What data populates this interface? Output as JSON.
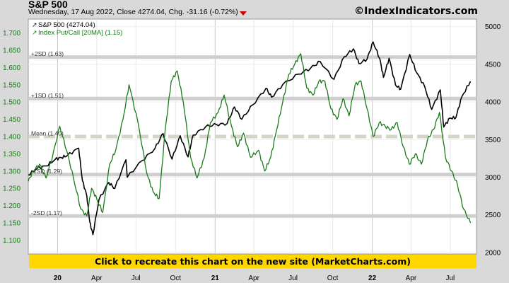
{
  "header": {
    "title": "S&P 500",
    "subtitle": "Wednesday, 17 Aug 2022, Close 4274.04, Chg. -31.16 (-0.72%)",
    "brand": "©IndexIndicators.com",
    "change_direction": "down"
  },
  "banner": {
    "label": "Click to recreate this chart on the new site (MarketCharts.com)"
  },
  "colors": {
    "background": "#d9d9d9",
    "plot_background": "#ffffff",
    "spx_line": "#000000",
    "putcall_line": "#1a7a1a",
    "banner": "#ffd700",
    "down_arrow": "#cc0000",
    "band": "#cfcfcf",
    "mean_band": "#d6d6c8"
  },
  "chart_data": {
    "type": "line",
    "x_axis": {
      "labels": [
        "20",
        "Apr",
        "Jul",
        "Oct",
        "21",
        "Apr",
        "Jul",
        "Oct",
        "22",
        "Apr",
        "Jul"
      ],
      "bold_labels": [
        "20",
        "21",
        "22"
      ],
      "range": [
        "2019-10-25",
        "2022-08-31"
      ]
    },
    "y_left": {
      "ticks": [
        1.1,
        1.15,
        1.2,
        1.25,
        1.3,
        1.35,
        1.4,
        1.45,
        1.5,
        1.55,
        1.6,
        1.65,
        1.7
      ],
      "range": [
        1.06,
        1.74
      ]
    },
    "y_right": {
      "ticks": [
        2000,
        2500,
        3000,
        3500,
        4000,
        4500,
        5000
      ],
      "range": [
        1980,
        5100
      ]
    },
    "legend": {
      "position": "top-left",
      "entries": [
        "S&P 500 (4274.04)",
        "Index Put/Call [20MA] (1.15)"
      ]
    },
    "bands": [
      {
        "label": "+2SD (1.63)",
        "value": 1.63
      },
      {
        "label": "+1SD (1.51)",
        "value": 1.51
      },
      {
        "label": "Mean (1.40)",
        "value": 1.4,
        "dashed": true
      },
      {
        "label": "-1SD (1.29)",
        "value": 1.29
      },
      {
        "label": "-2SD (1.17)",
        "value": 1.17
      }
    ],
    "series": [
      {
        "name": "S&P 500",
        "axis": "right",
        "x": [
          "2019-10-25",
          "2019-11-15",
          "2019-12-06",
          "2019-12-27",
          "2020-01-10",
          "2020-01-24",
          "2020-02-19",
          "2020-02-28",
          "2020-03-09",
          "2020-03-16",
          "2020-03-23",
          "2020-04-06",
          "2020-04-29",
          "2020-05-13",
          "2020-06-08",
          "2020-06-11",
          "2020-07-15",
          "2020-08-14",
          "2020-09-02",
          "2020-09-23",
          "2020-10-12",
          "2020-10-30",
          "2020-11-11",
          "2020-12-10",
          "2021-01-04",
          "2021-01-29",
          "2021-02-15",
          "2021-03-04",
          "2021-03-29",
          "2021-04-29",
          "2021-05-12",
          "2021-06-07",
          "2021-07-14",
          "2021-08-11",
          "2021-09-02",
          "2021-10-04",
          "2021-10-28",
          "2021-11-18",
          "2021-12-01",
          "2021-12-20",
          "2022-01-03",
          "2022-01-18",
          "2022-01-27",
          "2022-02-09",
          "2022-02-24",
          "2022-03-08",
          "2022-03-29",
          "2022-04-14",
          "2022-05-03",
          "2022-05-19",
          "2022-06-08",
          "2022-06-16",
          "2022-06-30",
          "2022-07-14",
          "2022-07-28",
          "2022-08-17"
        ],
        "values": [
          3030,
          3120,
          3150,
          3240,
          3260,
          3290,
          3386,
          2950,
          2750,
          2400,
          2237,
          2700,
          2930,
          2850,
          3232,
          3000,
          3220,
          3380,
          3580,
          3240,
          3550,
          3270,
          3560,
          3670,
          3700,
          3714,
          3934,
          3770,
          3960,
          4180,
          4063,
          4230,
          4370,
          4450,
          4537,
          4300,
          4600,
          4705,
          4510,
          4570,
          4796,
          4580,
          4326,
          4580,
          4225,
          4170,
          4630,
          4390,
          4200,
          3900,
          4160,
          3666,
          3785,
          3790,
          4070,
          4274
        ]
      },
      {
        "name": "Index Put/Call [20MA]",
        "axis": "left",
        "x": [
          "2019-10-25",
          "2019-11-05",
          "2019-11-20",
          "2019-12-05",
          "2019-12-20",
          "2020-01-06",
          "2020-01-22",
          "2020-02-07",
          "2020-02-24",
          "2020-03-09",
          "2020-03-20",
          "2020-04-01",
          "2020-04-15",
          "2020-05-01",
          "2020-05-15",
          "2020-06-01",
          "2020-06-15",
          "2020-07-06",
          "2020-07-27",
          "2020-08-10",
          "2020-08-24",
          "2020-09-07",
          "2020-09-21",
          "2020-10-05",
          "2020-10-19",
          "2020-11-05",
          "2020-11-20",
          "2020-12-07",
          "2020-12-21",
          "2021-01-08",
          "2021-01-22",
          "2021-02-08",
          "2021-02-22",
          "2021-03-08",
          "2021-03-24",
          "2021-04-12",
          "2021-04-26",
          "2021-05-10",
          "2021-05-24",
          "2021-06-07",
          "2021-06-21",
          "2021-07-05",
          "2021-07-19",
          "2021-08-02",
          "2021-08-16",
          "2021-08-30",
          "2021-09-13",
          "2021-09-27",
          "2021-10-11",
          "2021-10-25",
          "2021-11-08",
          "2021-11-22",
          "2021-12-06",
          "2021-12-20",
          "2022-01-03",
          "2022-01-17",
          "2022-01-31",
          "2022-02-14",
          "2022-02-28",
          "2022-03-14",
          "2022-03-28",
          "2022-04-11",
          "2022-04-25",
          "2022-05-09",
          "2022-05-23",
          "2022-06-06",
          "2022-06-20",
          "2022-07-04",
          "2022-07-18",
          "2022-08-01",
          "2022-08-17"
        ],
        "values": [
          1.27,
          1.3,
          1.32,
          1.28,
          1.34,
          1.43,
          1.36,
          1.28,
          1.19,
          1.17,
          1.25,
          1.22,
          1.18,
          1.32,
          1.36,
          1.45,
          1.55,
          1.44,
          1.29,
          1.24,
          1.22,
          1.42,
          1.56,
          1.59,
          1.5,
          1.34,
          1.28,
          1.34,
          1.44,
          1.47,
          1.52,
          1.43,
          1.37,
          1.41,
          1.34,
          1.36,
          1.3,
          1.34,
          1.42,
          1.5,
          1.58,
          1.61,
          1.64,
          1.54,
          1.52,
          1.56,
          1.56,
          1.48,
          1.45,
          1.51,
          1.46,
          1.55,
          1.56,
          1.48,
          1.4,
          1.44,
          1.43,
          1.42,
          1.44,
          1.37,
          1.32,
          1.35,
          1.32,
          1.39,
          1.42,
          1.47,
          1.34,
          1.3,
          1.26,
          1.19,
          1.15
        ]
      }
    ]
  }
}
